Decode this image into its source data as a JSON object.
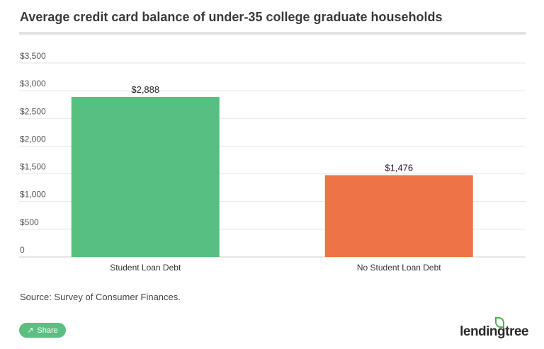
{
  "title": "Average credit card balance of under-35 college graduate households",
  "chart_data": {
    "type": "bar",
    "title": "Average credit card balance of under-35 college graduate households",
    "categories": [
      "Student Loan Debt",
      "No Student Loan Debt"
    ],
    "values": [
      2888,
      1476
    ],
    "data_labels": [
      "$2,888",
      "$1,476"
    ],
    "colors": [
      "#57bf7f",
      "#ee7448"
    ],
    "yticks": [
      0,
      500,
      1000,
      1500,
      2000,
      2500,
      3000,
      3500
    ],
    "ytick_labels": [
      "0",
      "$500",
      "$1,000",
      "$1,500",
      "$2,000",
      "$2,500",
      "$3,000",
      "$3,500"
    ],
    "ylim": [
      0,
      3500
    ],
    "xlabel": "",
    "ylabel": "",
    "grid": true
  },
  "source": "Source: Survey of Consumer Finances.",
  "share_label": "Share",
  "logo": "lendingtree"
}
